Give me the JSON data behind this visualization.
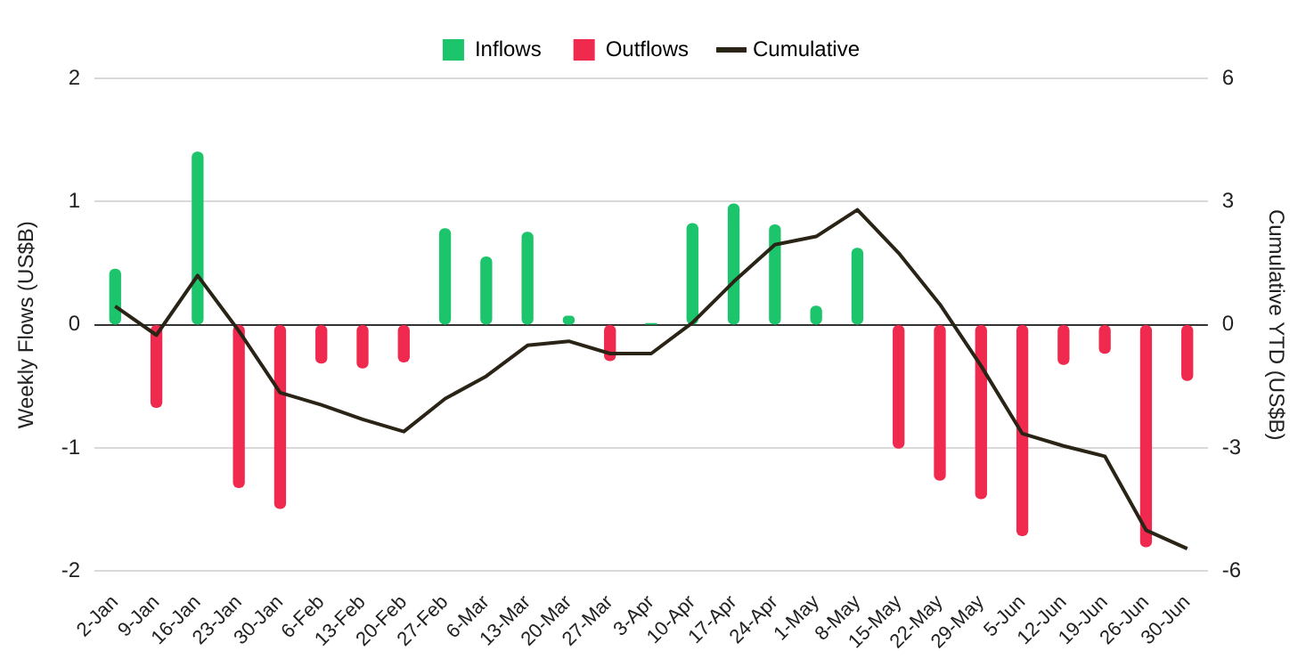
{
  "chart_data": {
    "type": "bar",
    "ylabel": "Weekly Flows (US$B)",
    "y2label": "Cumulative YTD (US$B)",
    "categories": [
      "2-Jan",
      "9-Jan",
      "16-Jan",
      "23-Jan",
      "30-Jan",
      "6-Feb",
      "13-Feb",
      "20-Feb",
      "27-Feb",
      "6-Mar",
      "13-Mar",
      "20-Mar",
      "27-Mar",
      "3-Apr",
      "10-Apr",
      "17-Apr",
      "24-Apr",
      "1-May",
      "8-May",
      "15-May",
      "22-May",
      "29-May",
      "5-Jun",
      "12-Jun",
      "19-Jun",
      "26-Jun",
      "30-Jun"
    ],
    "series": [
      {
        "name": "Inflows",
        "color": "#1cc46b",
        "values": [
          0.45,
          null,
          1.4,
          null,
          null,
          null,
          null,
          null,
          0.78,
          0.55,
          0.75,
          0.07,
          null,
          0.01,
          0.82,
          0.98,
          0.81,
          0.15,
          0.62,
          null,
          null,
          null,
          null,
          null,
          null,
          null,
          null
        ]
      },
      {
        "name": "Outflows",
        "color": "#f0294f",
        "values": [
          null,
          -0.67,
          null,
          -1.32,
          -1.49,
          -0.31,
          -0.35,
          -0.3,
          null,
          null,
          null,
          null,
          -0.29,
          null,
          null,
          null,
          null,
          null,
          null,
          -1.0,
          -1.26,
          -1.41,
          -1.71,
          -0.32,
          -0.23,
          -1.8,
          -0.45
        ]
      },
      {
        "name": "Cumulative",
        "type": "line",
        "axis": "y2",
        "color": "#2a2416",
        "values": [
          0.45,
          -0.25,
          1.2,
          -0.15,
          -1.65,
          -1.95,
          -2.3,
          -2.6,
          -1.8,
          -1.25,
          -0.5,
          -0.4,
          -0.7,
          -0.7,
          0.05,
          1.05,
          1.95,
          2.15,
          2.8,
          1.75,
          0.5,
          -1.0,
          -2.65,
          -2.95,
          -3.2,
          -5.0,
          -5.45
        ]
      }
    ],
    "ylim": [
      -2,
      2
    ],
    "yticks": [
      -2,
      -1,
      0,
      1,
      2
    ],
    "y2lim": [
      -6,
      6
    ],
    "y2ticks": [
      -6,
      -3,
      0,
      3,
      6
    ],
    "grid": "y",
    "legend": "top",
    "marker": "none",
    "line_style": "solid"
  }
}
